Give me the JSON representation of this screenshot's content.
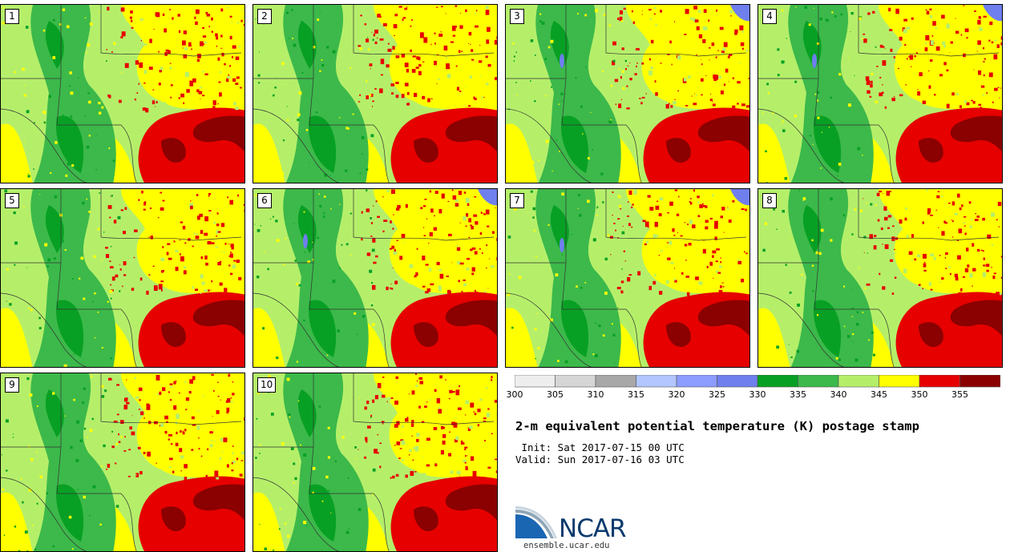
{
  "panels": [
    {
      "label": "1"
    },
    {
      "label": "2"
    },
    {
      "label": "3"
    },
    {
      "label": "4"
    },
    {
      "label": "5"
    },
    {
      "label": "6"
    },
    {
      "label": "7"
    },
    {
      "label": "8"
    },
    {
      "label": "9"
    },
    {
      "label": "10"
    }
  ],
  "colorbar": {
    "colors": [
      "#eeeeee",
      "#d6d6d6",
      "#a8a8a8",
      "#b3c6ff",
      "#8c9cff",
      "#6f7fee",
      "#08a024",
      "#3cb94a",
      "#b5ef6a",
      "#ffff00",
      "#e60000",
      "#8b0000"
    ],
    "ticks": [
      "300",
      "305",
      "310",
      "315",
      "320",
      "325",
      "330",
      "335",
      "340",
      "345",
      "350",
      "355"
    ]
  },
  "title": "2-m equivalent potential temperature (K) postage stamp",
  "init": " Init: Sat 2017-07-15 00 UTC",
  "valid": "Valid: Sun 2017-07-16 03 UTC",
  "logo": {
    "text": "NCAR",
    "url": "ensemble.ucar.edu"
  }
}
